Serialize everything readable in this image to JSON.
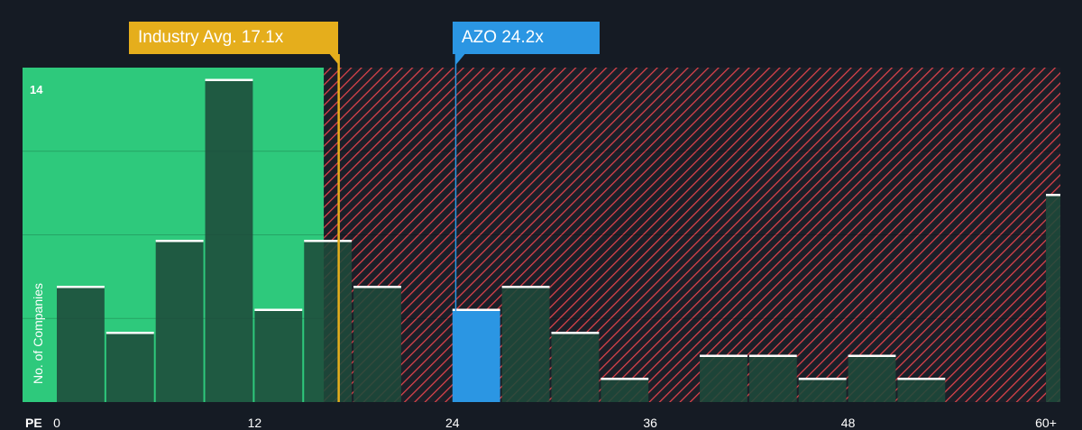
{
  "chart_data": {
    "type": "bar",
    "x_axis_label": "PE",
    "y_axis_label": "No. of Companies",
    "x_ticks": [
      "0",
      "12",
      "24",
      "36",
      "48",
      "60+"
    ],
    "y_max_label": "14",
    "ylim": [
      0,
      14
    ],
    "xlim": [
      -1,
      61
    ],
    "bin_width": 3,
    "bins": [
      {
        "x": 0,
        "count": 5
      },
      {
        "x": 3,
        "count": 3
      },
      {
        "x": 6,
        "count": 7
      },
      {
        "x": 9,
        "count": 14
      },
      {
        "x": 12,
        "count": 4
      },
      {
        "x": 15,
        "count": 7
      },
      {
        "x": 18,
        "count": 5
      },
      {
        "x": 21,
        "count": 0
      },
      {
        "x": 24,
        "count": 4,
        "highlight": true
      },
      {
        "x": 27,
        "count": 5
      },
      {
        "x": 30,
        "count": 3
      },
      {
        "x": 33,
        "count": 1
      },
      {
        "x": 36,
        "count": 0
      },
      {
        "x": 39,
        "count": 2
      },
      {
        "x": 42,
        "count": 2
      },
      {
        "x": 45,
        "count": 1
      },
      {
        "x": 48,
        "count": 2
      },
      {
        "x": 51,
        "count": 1
      },
      {
        "x": 54,
        "count": 0
      },
      {
        "x": 57,
        "count": 0
      },
      {
        "x": 60,
        "count": 9
      }
    ],
    "industry_avg": {
      "label": "Industry Avg. 17.1x",
      "value": 17.1
    },
    "company": {
      "label": "AZO 24.2x",
      "ticker": "AZO",
      "value": 24.2
    },
    "undervalued_region_end": 16.2,
    "colors": {
      "background": "#151b24",
      "green_zone": "#2ec97c",
      "bar_dark": "#1e4a3a",
      "red_hatch": "#e0434b",
      "highlight_bar": "#2b96e3",
      "industry_line": "#e5ae1c",
      "company_line": "#2b96e3",
      "bar_cap": "#ffffff"
    },
    "grid": true
  }
}
